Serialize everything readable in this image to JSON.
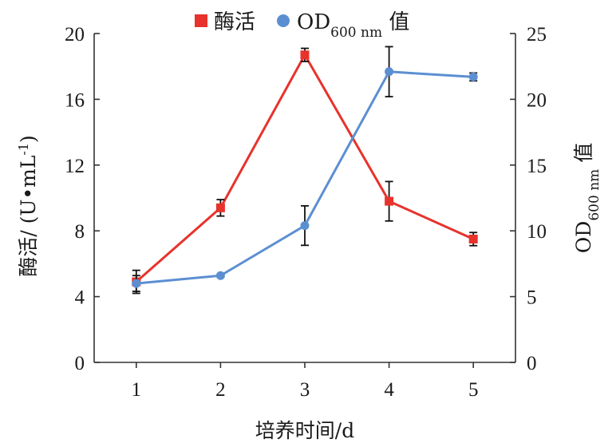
{
  "chart_data": {
    "type": "line",
    "x": [
      1,
      2,
      3,
      4,
      5
    ],
    "xlabel": "培养时间/d",
    "ylabel_left": "酶活/ (U•mL-1)",
    "ylabel_right": "OD600 nm 值",
    "ylim_left": [
      0,
      20
    ],
    "ylim_right": [
      0,
      25
    ],
    "yticks_left": [
      0,
      4,
      8,
      12,
      16,
      20
    ],
    "yticks_right": [
      0,
      5,
      10,
      15,
      20,
      25
    ],
    "xlim": [
      0.5,
      5.5
    ],
    "grid": false,
    "legend_position": "top",
    "series": [
      {
        "name": "酶活",
        "axis": "left",
        "color": "#e8322c",
        "marker": "square",
        "values": [
          4.9,
          9.4,
          18.7,
          9.8,
          7.5
        ],
        "errors": [
          0.7,
          0.5,
          0.4,
          1.2,
          0.4
        ]
      },
      {
        "name": "OD600 nm 值",
        "axis": "right",
        "color": "#5b8fd2",
        "marker": "circle",
        "values": [
          6.0,
          6.6,
          10.4,
          22.1,
          21.7
        ],
        "errors": [
          0.6,
          0.1,
          1.5,
          1.9,
          0.3
        ]
      }
    ]
  }
}
